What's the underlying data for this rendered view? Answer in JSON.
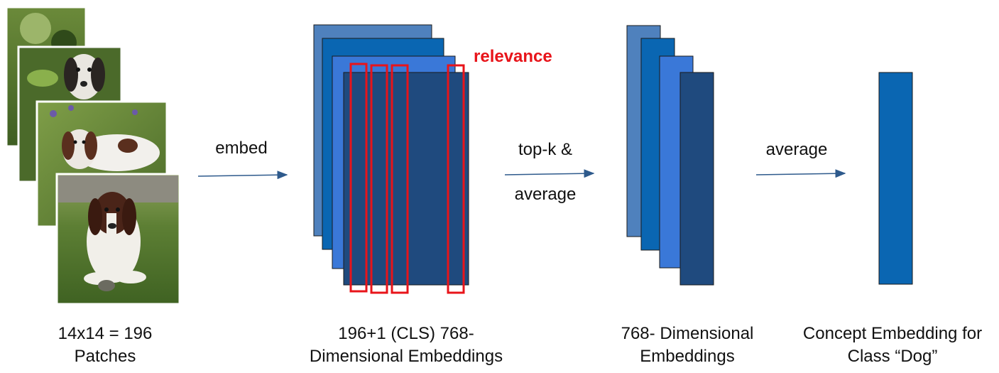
{
  "colors": {
    "layer1": "#4f81bd",
    "layer2": "#0a66b2",
    "layer3": "#3a78d8",
    "layer4": "#1f4a7e",
    "concept": "#0a66b2",
    "relevance": "#e8141a",
    "arrow": "#2e5a8c"
  },
  "stage1": {
    "caption_line1": "14x14 = 196",
    "caption_line2": "Patches"
  },
  "arrow1": {
    "label": "embed"
  },
  "stage2": {
    "caption_line1": "196+1 (CLS) 768-",
    "caption_line2": "Dimensional Embeddings",
    "relevance_label": "relevance"
  },
  "arrow2": {
    "label_line1": "top-k &",
    "label_line2": "average"
  },
  "stage3": {
    "caption_line1": "768- Dimensional",
    "caption_line2": "Embeddings"
  },
  "arrow3": {
    "label": "average"
  },
  "stage4": {
    "caption_line1": "Concept Embedding for",
    "caption_line2": "Class “Dog”"
  }
}
